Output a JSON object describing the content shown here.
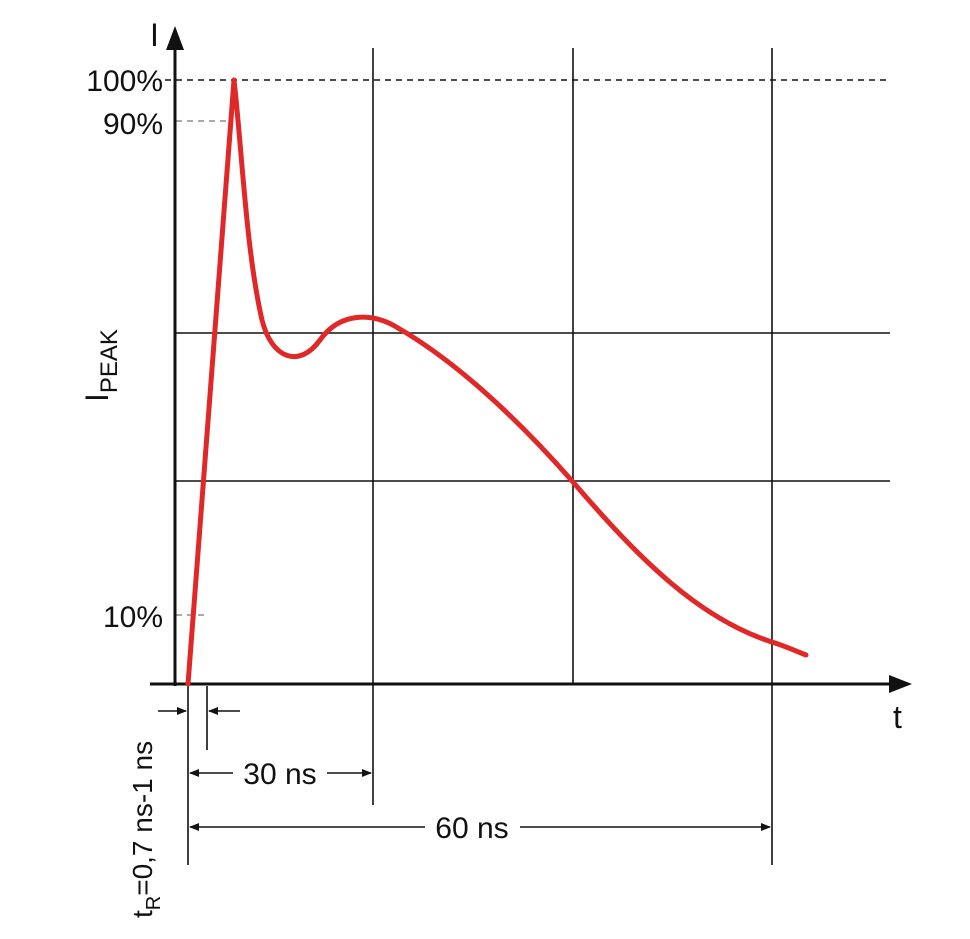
{
  "axes": {
    "y_label": "I",
    "x_label": "t",
    "peak_label_main": "I",
    "peak_label_sub": "PEAK"
  },
  "levels": {
    "pct_100": "100%",
    "pct_90": "90%",
    "pct_10": "10%"
  },
  "dimensions": {
    "rise_time_main": "t",
    "rise_time_sub": "R",
    "rise_time_value": "=0,7 ns-1 ns",
    "t30": "30 ns",
    "t60": "60 ns"
  },
  "colors": {
    "waveform": "#e02828",
    "lines": "#111111"
  }
}
